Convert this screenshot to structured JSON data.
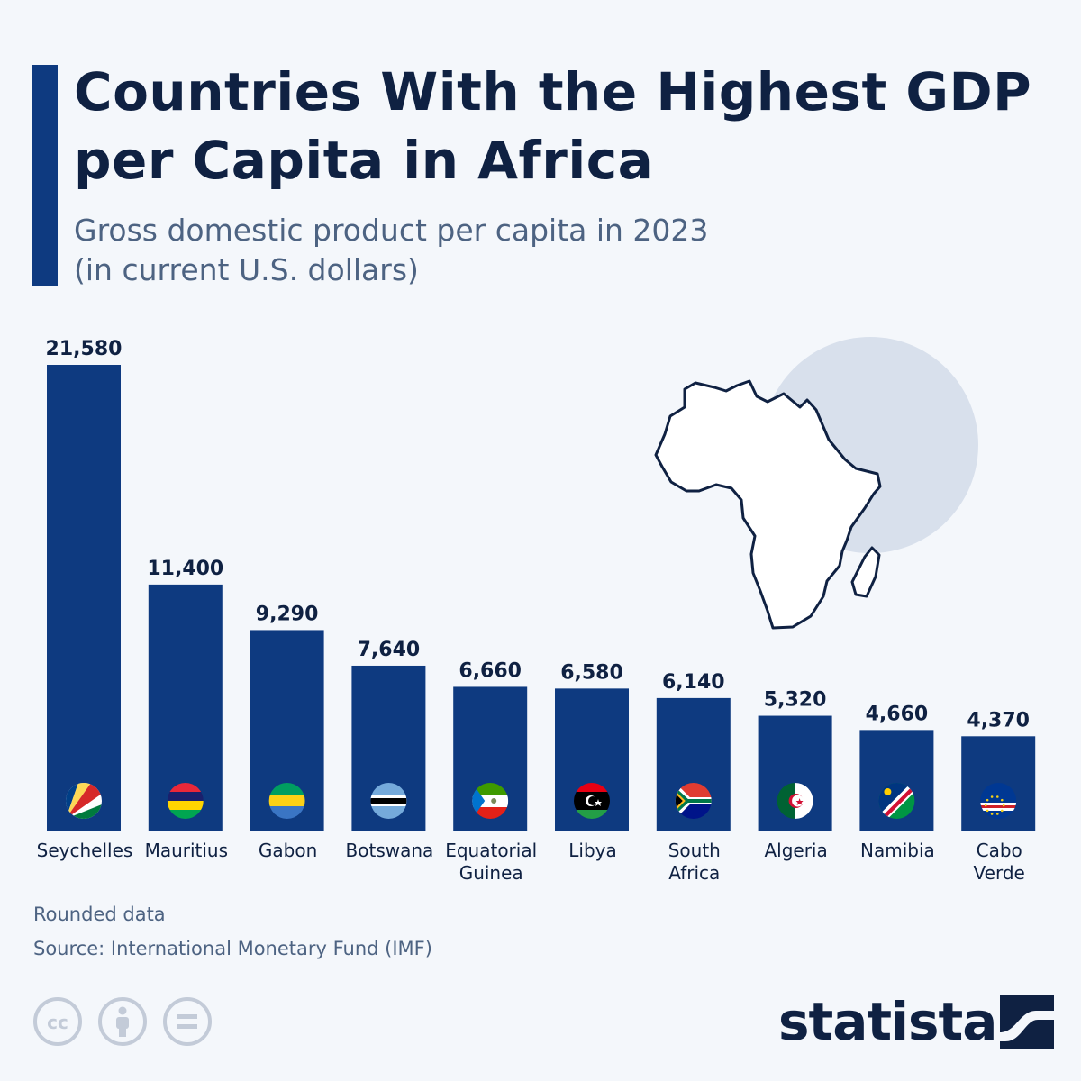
{
  "title": "Countries With the Highest GDP per Capita in Africa",
  "subtitle_line1": "Gross domestic product per capita in 2023",
  "subtitle_line2": "(in current U.S. dollars)",
  "footnote_rounded": "Rounded data",
  "footnote_source": "Source: International Monetary Fund (IMF)",
  "brand": {
    "name": "statista"
  },
  "license_icons": [
    "cc-icon",
    "attribution-icon",
    "no-derivatives-icon"
  ],
  "colors": {
    "bar": "#0e3a80",
    "text": "#0f2142",
    "subtitle": "#4d6382",
    "background": "#f4f7fb",
    "map_circle": "#d8e0ec"
  },
  "chart_data": {
    "type": "bar",
    "categories": [
      [
        "Seychelles"
      ],
      [
        "Mauritius"
      ],
      [
        "Gabon"
      ],
      [
        "Botswana"
      ],
      [
        "Equatorial",
        "Guinea"
      ],
      [
        "Libya"
      ],
      [
        "South",
        "Africa"
      ],
      [
        "Algeria"
      ],
      [
        "Namibia"
      ],
      [
        "Cabo",
        "Verde"
      ]
    ],
    "values": [
      21580,
      11400,
      9290,
      7640,
      6660,
      6580,
      6140,
      5320,
      4660,
      4370
    ],
    "value_labels": [
      "21,580",
      "11,400",
      "9,290",
      "7,640",
      "6,660",
      "6,580",
      "6,140",
      "5,320",
      "4,660",
      "4,370"
    ],
    "flag_icons": [
      "seychelles-flag-icon",
      "mauritius-flag-icon",
      "gabon-flag-icon",
      "botswana-flag-icon",
      "equatorial-guinea-flag-icon",
      "libya-flag-icon",
      "south-africa-flag-icon",
      "algeria-flag-icon",
      "namibia-flag-icon",
      "cabo-verde-flag-icon"
    ],
    "ylim": [
      0,
      21580
    ],
    "grid": false,
    "legend": "none"
  }
}
